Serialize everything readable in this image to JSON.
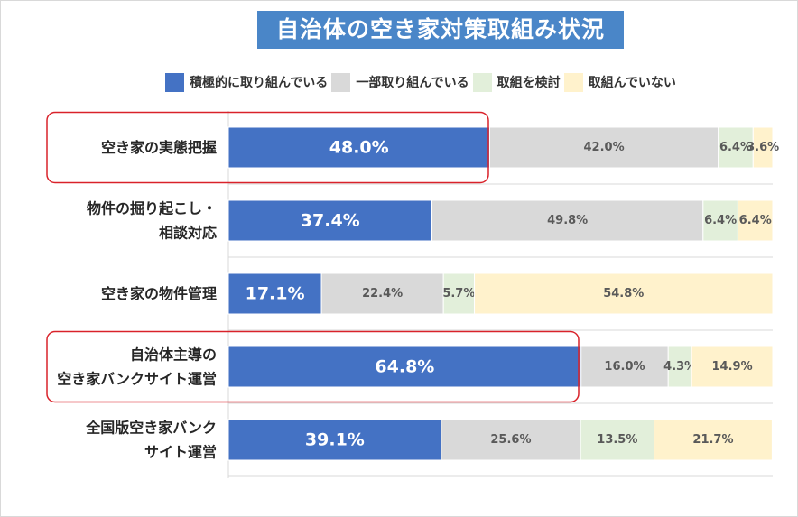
{
  "chart_data": {
    "type": "bar",
    "orientation": "horizontal",
    "stacked": "100%",
    "title": "自治体の空き家対策取組み状況",
    "categories": [
      [
        "空き家の実態把握"
      ],
      [
        "物件の掘り起こし・",
        "相談対応"
      ],
      [
        "空き家の物件管理"
      ],
      [
        "自治体主導の",
        "空き家バンクサイト運営"
      ],
      [
        "全国版空き家バンク",
        "サイト運営"
      ]
    ],
    "series": [
      {
        "name": "積極的に取り組んでいる",
        "color": "#4472c4",
        "values": [
          48.0,
          37.4,
          17.1,
          64.8,
          39.1
        ]
      },
      {
        "name": "一部取り組んでいる",
        "color": "#d9d9d9",
        "values": [
          42.0,
          49.8,
          22.4,
          16.0,
          25.6
        ]
      },
      {
        "name": "取組を検討",
        "color": "#e2efda",
        "values": [
          6.4,
          6.4,
          5.7,
          4.3,
          13.5
        ]
      },
      {
        "name": "取組んでいない",
        "color": "#fff2cc",
        "values": [
          3.6,
          6.4,
          54.8,
          14.9,
          21.7
        ]
      }
    ],
    "value_labels": [
      [
        "48.0%",
        "42.0%",
        "6.4%",
        "3.6%"
      ],
      [
        "37.4%",
        "49.8%",
        "6.4%",
        "6.4%"
      ],
      [
        "17.1%",
        "22.4%",
        "5.7%",
        "54.8%"
      ],
      [
        "64.8%",
        "16.0%",
        "4.3%",
        "14.9%"
      ],
      [
        "39.1%",
        "25.6%",
        "13.5%",
        "21.7%"
      ]
    ],
    "xlim": [
      0,
      100
    ],
    "highlighted_categories": [
      0,
      3
    ],
    "highlight_color": "#d9222a",
    "legend_position": "top"
  }
}
